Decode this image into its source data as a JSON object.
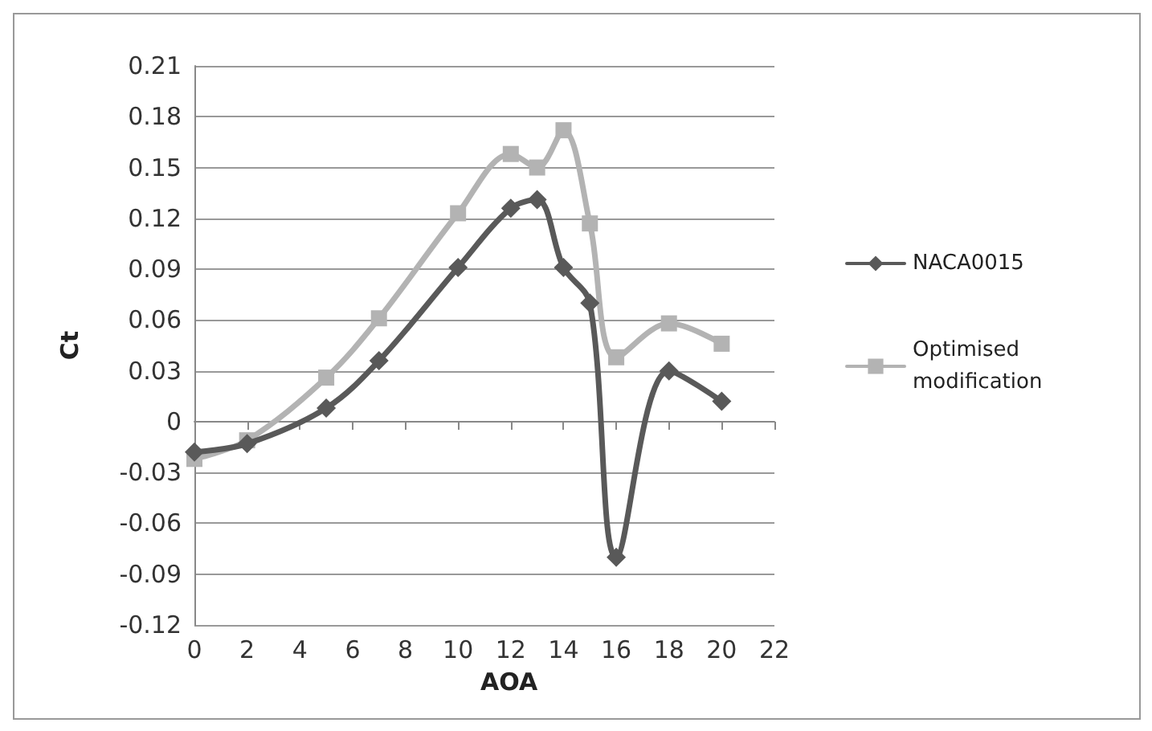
{
  "chart_data": {
    "type": "line",
    "xlabel": "AOA",
    "ylabel": "Ct",
    "xlim": [
      0,
      22
    ],
    "xticks": [
      0,
      2,
      4,
      6,
      8,
      10,
      12,
      14,
      16,
      18,
      20,
      22
    ],
    "ylim": [
      -0.12,
      0.21
    ],
    "yticks": [
      -0.12,
      -0.09,
      -0.06,
      -0.03,
      0,
      0.03,
      0.06,
      0.09,
      0.12,
      0.15,
      0.18,
      0.21
    ],
    "grid": "y",
    "legend": "right",
    "x": [
      0,
      2,
      5,
      7,
      10,
      12,
      13,
      14,
      15,
      16,
      18,
      20
    ],
    "series": [
      {
        "name": "NACA0015",
        "color": "#595959",
        "marker": "diamond",
        "values": [
          -0.018,
          -0.013,
          0.008,
          0.036,
          0.091,
          0.126,
          0.131,
          0.091,
          0.07,
          -0.08,
          0.03,
          0.012
        ]
      },
      {
        "name": "Optimised modification",
        "color": "#b3b3b3",
        "marker": "square",
        "values": [
          -0.022,
          -0.011,
          0.026,
          0.061,
          0.123,
          0.158,
          0.15,
          0.172,
          0.117,
          0.038,
          0.058,
          0.046
        ]
      }
    ]
  }
}
